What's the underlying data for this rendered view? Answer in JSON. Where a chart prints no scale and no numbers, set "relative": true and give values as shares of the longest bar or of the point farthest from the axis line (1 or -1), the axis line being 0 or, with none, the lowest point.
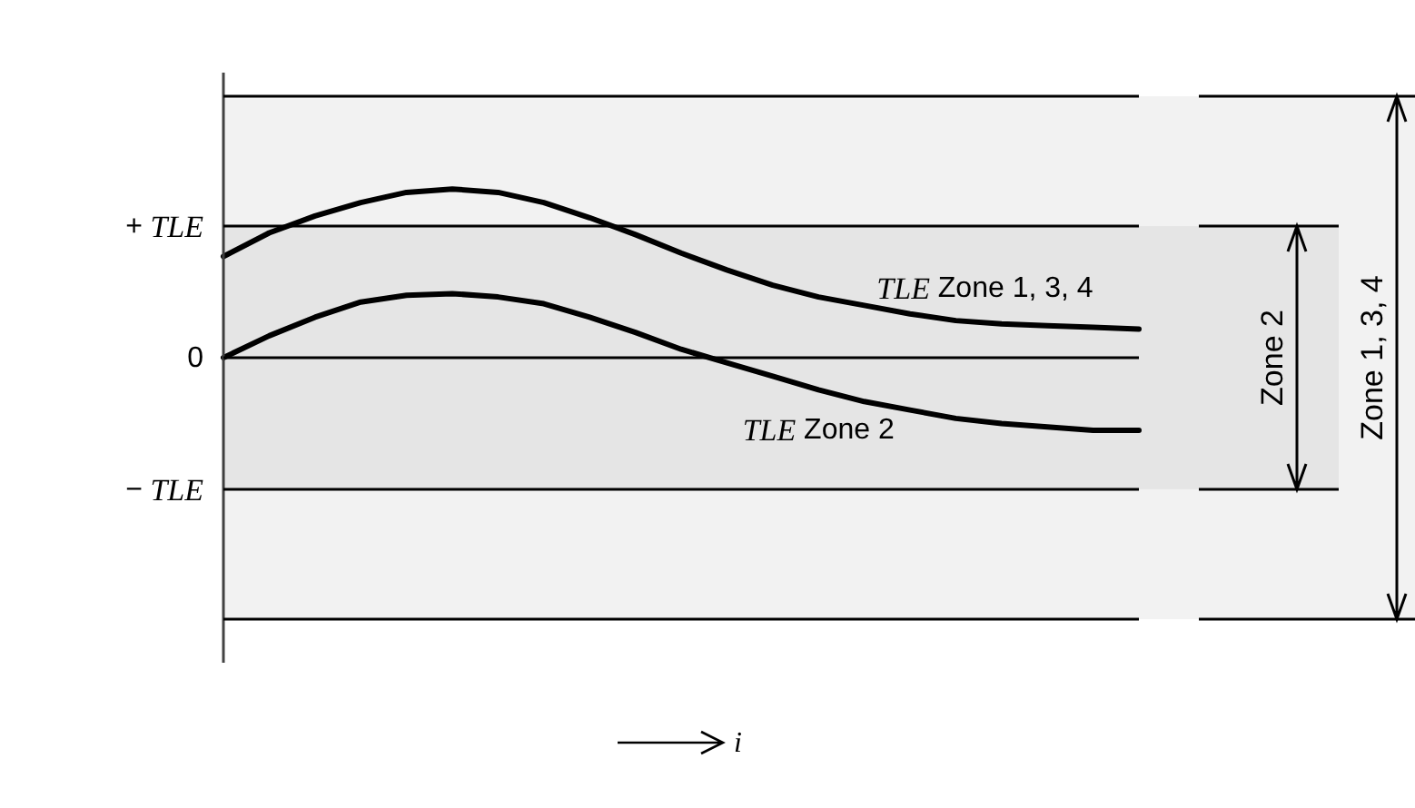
{
  "chart_data": {
    "type": "line",
    "annotations": [
      "i"
    ],
    "relative": true,
    "categories": [
      null,
      null,
      null,
      null,
      null,
      null,
      null,
      null,
      null,
      null,
      null,
      null,
      null,
      null,
      null,
      null,
      null,
      null,
      null,
      null,
      null
    ],
    "series": [
      {
        "name": "TLE Zone 1, 3, 4",
        "color": "#000000",
        "values": [
          0.6,
          0.74,
          0.84,
          0.92,
          0.98,
          1,
          0.98,
          0.92,
          0.83,
          0.73,
          0.62,
          0.52,
          0.43,
          0.36,
          0.31,
          0.26,
          0.22,
          0.2,
          0.19,
          0.18,
          0.17
        ]
      },
      {
        "name": "TLE Zone 2",
        "color": "#000000",
        "values": [
          0,
          0.13,
          0.24,
          0.33,
          0.37,
          0.38,
          0.36,
          0.32,
          0.24,
          0.15,
          0.05,
          -0.03,
          -0.11,
          -0.19,
          -0.26,
          -0.31,
          -0.36,
          -0.39,
          -0.41,
          -0.43,
          -0.43
        ]
      }
    ],
    "ref_lines": [
      {
        "axis": "y",
        "value": 1.55
      },
      {
        "axis": "y",
        "value": 0.78,
        "label": "+ TLE"
      },
      {
        "axis": "y",
        "value": 0,
        "label": "0"
      },
      {
        "axis": "y",
        "value": -0.78,
        "label": "− TLE"
      },
      {
        "axis": "y",
        "value": -1.55
      }
    ],
    "bands": [
      {
        "axis": "y",
        "from": -0.78,
        "to": 0.78,
        "label": "Zone 2"
      },
      {
        "axis": "y",
        "from": -1.55,
        "to": 1.55,
        "label": "Zone 1, 3, 4"
      }
    ],
    "legend": false,
    "marker": "none",
    "line_style": "solid"
  }
}
